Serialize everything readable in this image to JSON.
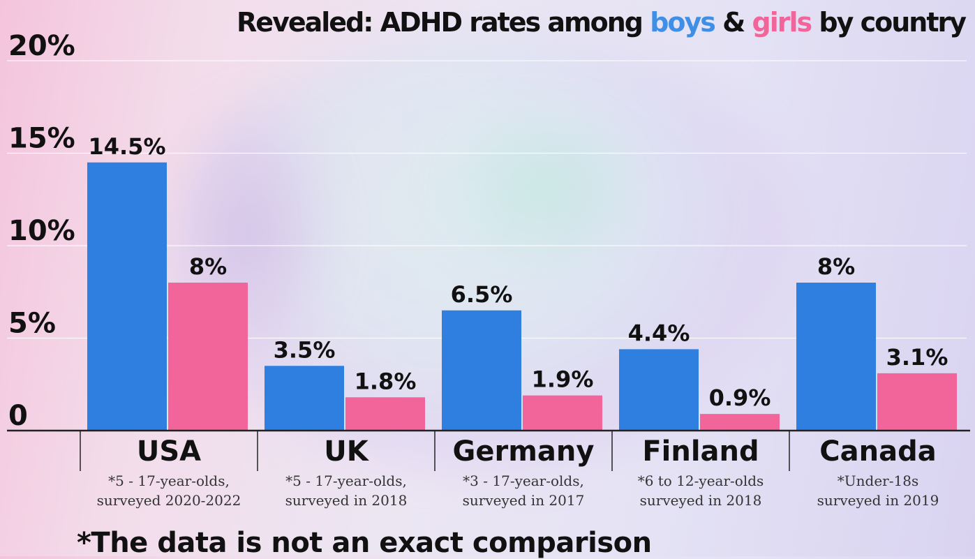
{
  "title": {
    "prefix": "Revealed: ADHD rates among ",
    "boys": "boys",
    "amp": " & ",
    "girls": "girls",
    "suffix": " by country"
  },
  "footnote": "*The data is not an exact comparison",
  "colors": {
    "boys": "#2f7fe0",
    "girls": "#f2659a",
    "text": "#111111",
    "note": "#333333",
    "grid": "#ffffff",
    "axis": "#222222"
  },
  "chart_data": {
    "type": "bar",
    "ylim": [
      0,
      20
    ],
    "yticks": [
      0,
      5,
      10,
      15,
      20
    ],
    "ytick_labels": [
      "0",
      "5%",
      "10%",
      "15%",
      "20%"
    ],
    "grid": true,
    "categories": [
      "USA",
      "UK",
      "Germany",
      "Finland",
      "Canada"
    ],
    "notes": [
      [
        "*5 - 17-year-olds,",
        "surveyed 2020-2022"
      ],
      [
        "*5 - 17-year-olds,",
        "surveyed in 2018"
      ],
      [
        "*3 - 17-year-olds,",
        "surveyed in 2017"
      ],
      [
        "*6 to 12-year-olds",
        "surveyed in 2018"
      ],
      [
        "*Under-18s",
        "surveyed in 2019"
      ]
    ],
    "series": [
      {
        "name": "boys",
        "values": [
          14.5,
          3.5,
          6.5,
          4.4,
          8
        ],
        "labels": [
          "14.5%",
          "3.5%",
          "6.5%",
          "4.4%",
          "8%"
        ]
      },
      {
        "name": "girls",
        "values": [
          8,
          1.8,
          1.9,
          0.9,
          3.1
        ],
        "labels": [
          "8%",
          "1.8%",
          "1.9%",
          "0.9%",
          "3.1%"
        ]
      }
    ]
  }
}
